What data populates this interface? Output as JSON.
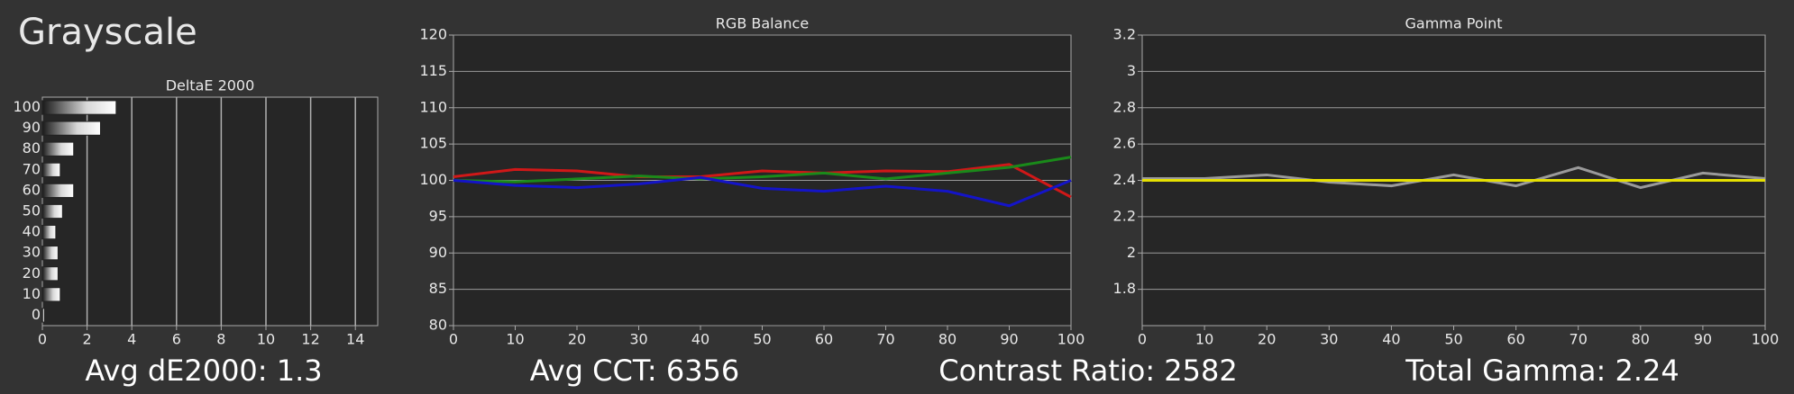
{
  "title": "Grayscale",
  "chart_data": [
    {
      "type": "bar",
      "orientation": "horizontal",
      "title": "DeltaE 2000",
      "categories": [
        "100",
        "90",
        "80",
        "70",
        "60",
        "50",
        "40",
        "30",
        "20",
        "10",
        "0"
      ],
      "values": [
        3.3,
        2.6,
        1.4,
        0.8,
        1.4,
        0.9,
        0.6,
        0.7,
        0.7,
        0.8,
        0.1
      ],
      "xlim": [
        0,
        15
      ],
      "xticks": [
        0,
        2,
        4,
        6,
        8,
        10,
        12,
        14
      ],
      "grid": true
    },
    {
      "type": "line",
      "title": "RGB Balance",
      "x": [
        0,
        10,
        20,
        30,
        40,
        50,
        60,
        70,
        80,
        90,
        100
      ],
      "series": [
        {
          "color": "#d01818",
          "values": [
            100.5,
            101.5,
            101.3,
            100.5,
            100.5,
            101.3,
            101,
            101.3,
            101.2,
            102.2,
            97.7
          ]
        },
        {
          "color": "#1a8a1a",
          "values": [
            100,
            99.8,
            100.2,
            100.6,
            100.2,
            100.5,
            101,
            100.2,
            101,
            101.8,
            103.2
          ]
        },
        {
          "color": "#1414c8",
          "values": [
            100,
            99.3,
            99,
            99.5,
            100.4,
            98.9,
            98.5,
            99.2,
            98.5,
            96.5,
            100
          ]
        }
      ],
      "xlim": [
        0,
        100
      ],
      "xticks": [
        0,
        10,
        20,
        30,
        40,
        50,
        60,
        70,
        80,
        90,
        100
      ],
      "ylim": [
        80,
        120
      ],
      "yticks": [
        80,
        85,
        90,
        95,
        100,
        105,
        110,
        115,
        120
      ],
      "grid": true
    },
    {
      "type": "line",
      "title": "Gamma Point",
      "x": [
        0,
        10,
        20,
        30,
        40,
        50,
        60,
        70,
        80,
        90,
        100
      ],
      "series": [
        {
          "color": "#9a9a9a",
          "values": [
            2.41,
            2.41,
            2.43,
            2.39,
            2.37,
            2.43,
            2.37,
            2.47,
            2.36,
            2.44,
            2.41
          ]
        },
        {
          "color": "#e6e000",
          "values": [
            2.4,
            2.4,
            2.4,
            2.4,
            2.4,
            2.4,
            2.4,
            2.4,
            2.4,
            2.4,
            2.4
          ]
        }
      ],
      "xlim": [
        0,
        100
      ],
      "xticks": [
        0,
        10,
        20,
        30,
        40,
        50,
        60,
        70,
        80,
        90,
        100
      ],
      "ylim": [
        1.6,
        3.2
      ],
      "yticks": [
        1.8,
        2,
        2.2,
        2.4,
        2.6,
        2.8,
        3,
        3.2
      ],
      "grid": true
    }
  ],
  "stats": [
    "Avg dE2000: 1.3",
    "Avg CCT: 6356",
    "Contrast Ratio: 2582",
    "Total Gamma: 2.24"
  ]
}
